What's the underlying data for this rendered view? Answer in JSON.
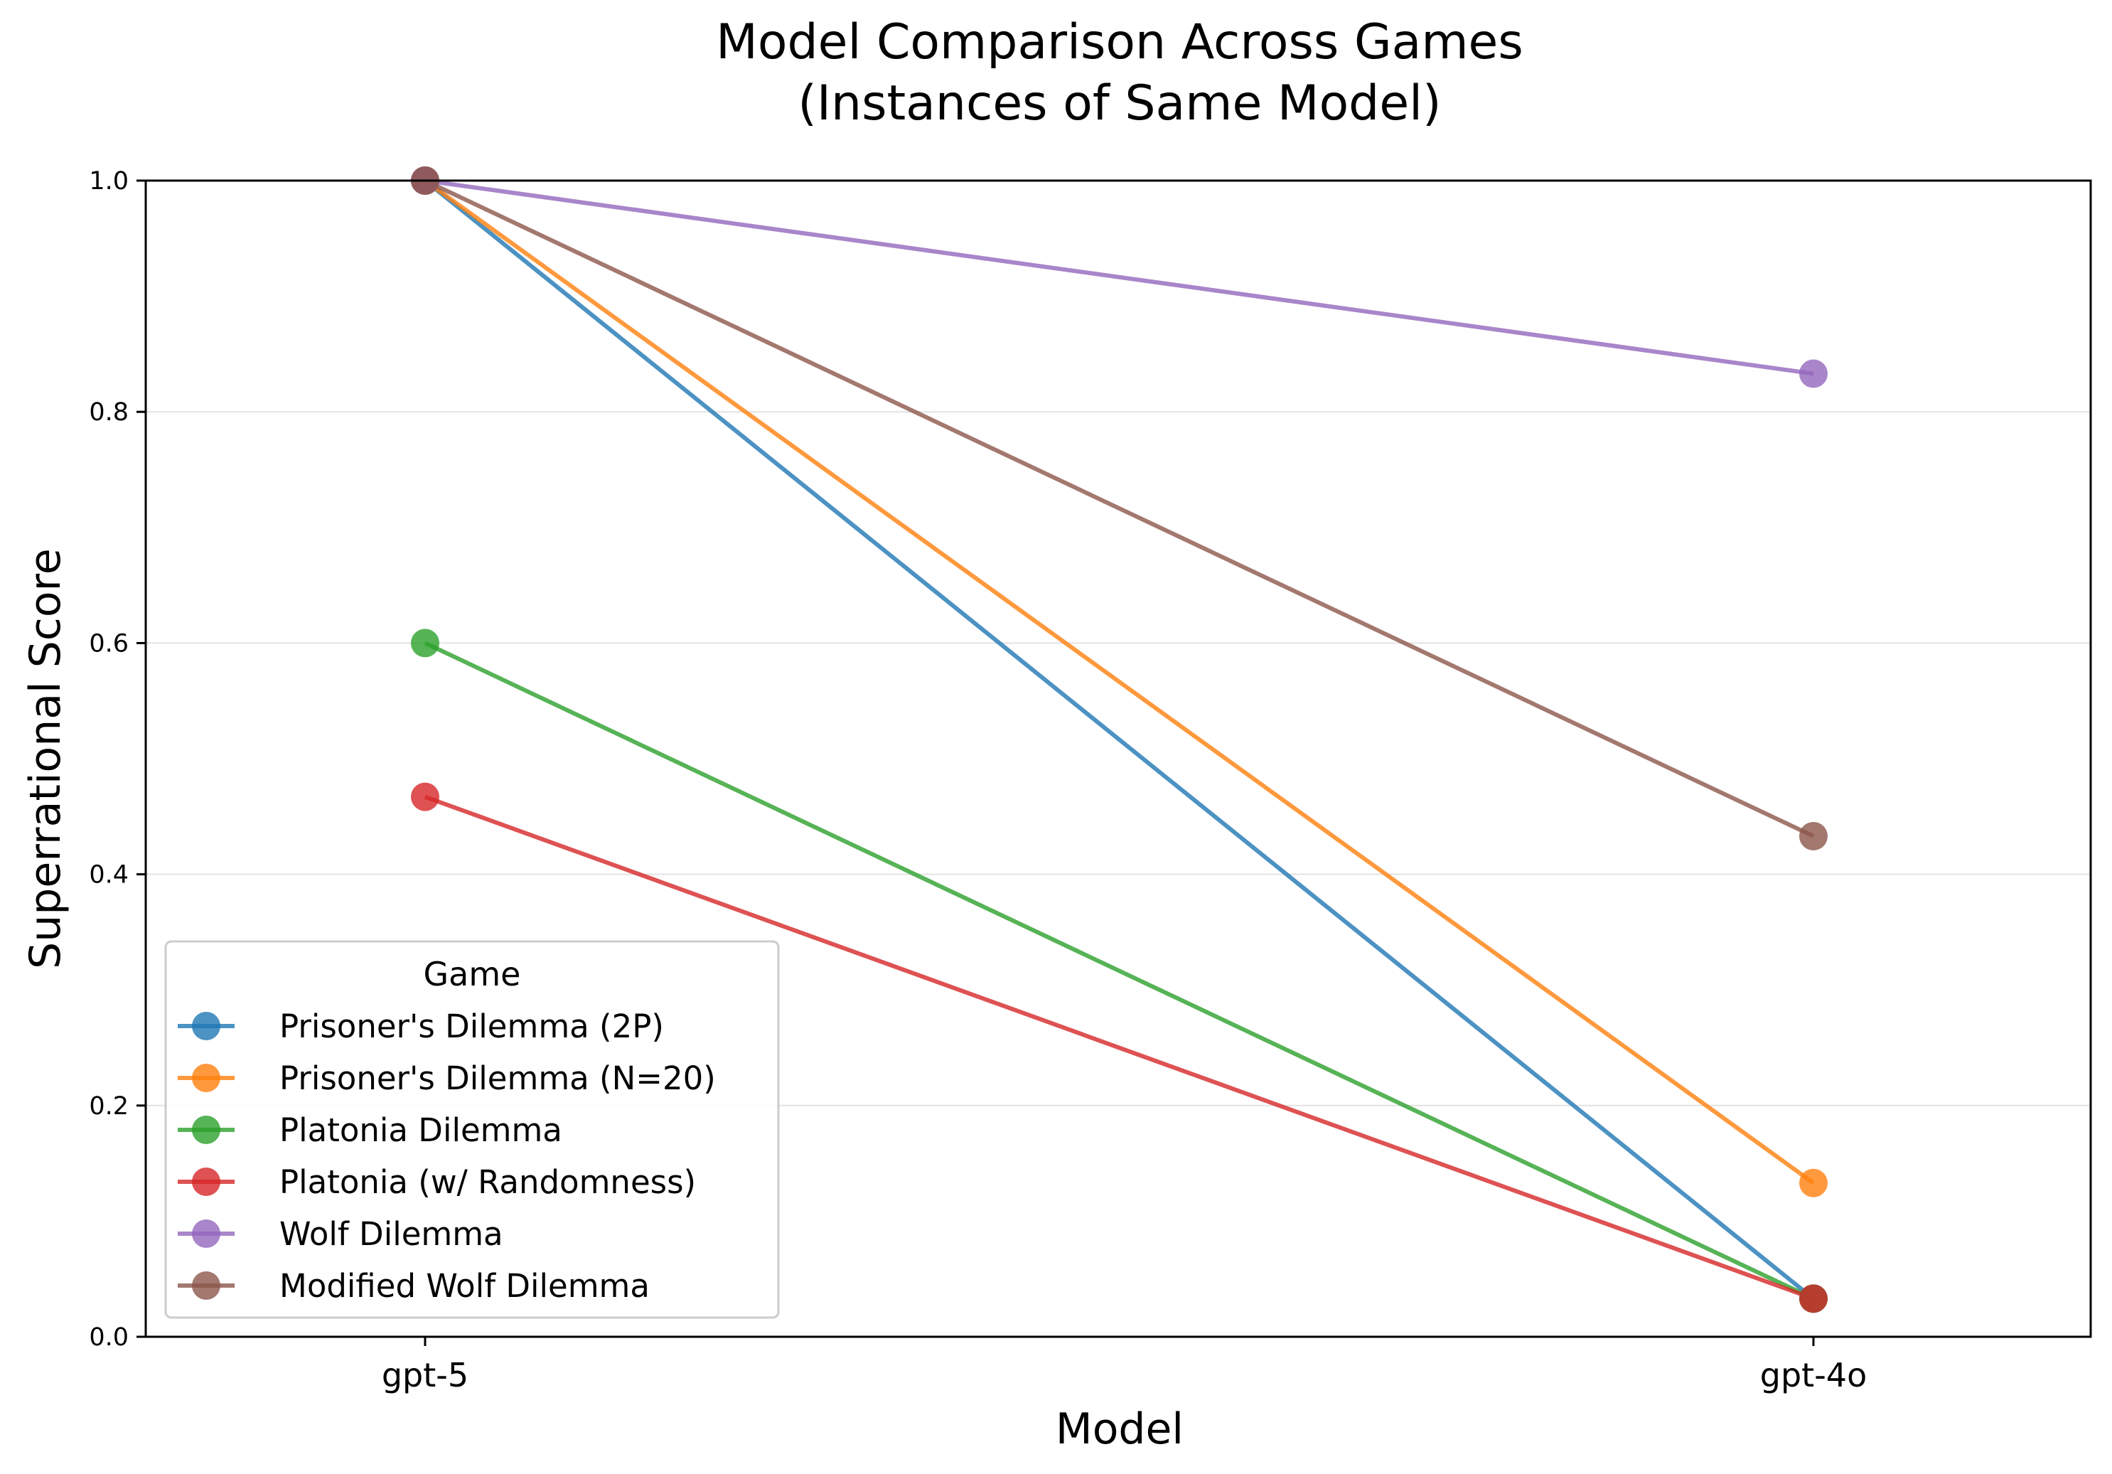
{
  "chart_data": {
    "type": "line",
    "title": [
      "Model Comparison Across Games",
      "(Instances of Same Model)"
    ],
    "xlabel": "Model",
    "ylabel": "Superrational Score",
    "categories": [
      "gpt-5",
      "gpt-4o"
    ],
    "ylim": [
      0.0,
      1.0
    ],
    "yticks": [
      "0.0",
      "0.2",
      "0.4",
      "0.6",
      "0.8",
      "1.0"
    ],
    "grid": "y",
    "legend": {
      "title": "Game",
      "position": "lower-left"
    },
    "series": [
      {
        "name": "Prisoner's Dilemma (2P)",
        "color": "#1f77b4",
        "values": [
          1.0,
          0.033
        ]
      },
      {
        "name": "Prisoner's Dilemma (N=20)",
        "color": "#ff7f0e",
        "values": [
          1.0,
          0.133
        ]
      },
      {
        "name": "Platonia Dilemma",
        "color": "#2ca02c",
        "values": [
          0.6,
          0.033
        ]
      },
      {
        "name": "Platonia (w/ Randomness)",
        "color": "#d62728",
        "values": [
          0.467,
          0.033
        ]
      },
      {
        "name": "Wolf Dilemma",
        "color": "#9467bd",
        "values": [
          1.0,
          0.833
        ]
      },
      {
        "name": "Modified Wolf Dilemma",
        "color": "#8c564b",
        "values": [
          1.0,
          0.433
        ]
      }
    ]
  }
}
